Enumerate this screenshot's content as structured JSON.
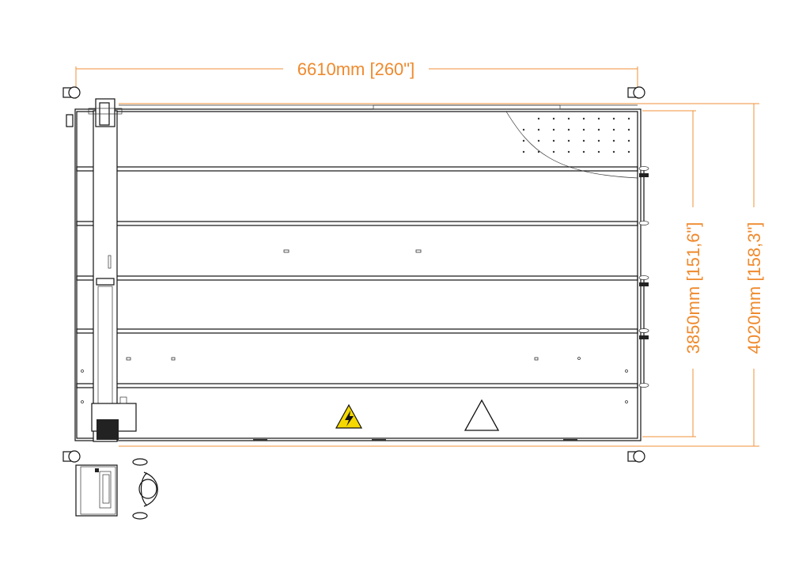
{
  "dimensions": {
    "width_label": "6610mm [260\"]",
    "inner_depth_label": "3850mm [151,6\"]",
    "outer_depth_label": "4020mm [158,3\"]"
  },
  "colors": {
    "dimension": "#ef8a2e",
    "lines": "#111111",
    "warning_yellow": "#f5d800"
  },
  "icons": [
    "caster-icon",
    "high-voltage-warning-icon",
    "caution-triangle-icon",
    "operator-icon",
    "control-station-icon"
  ]
}
